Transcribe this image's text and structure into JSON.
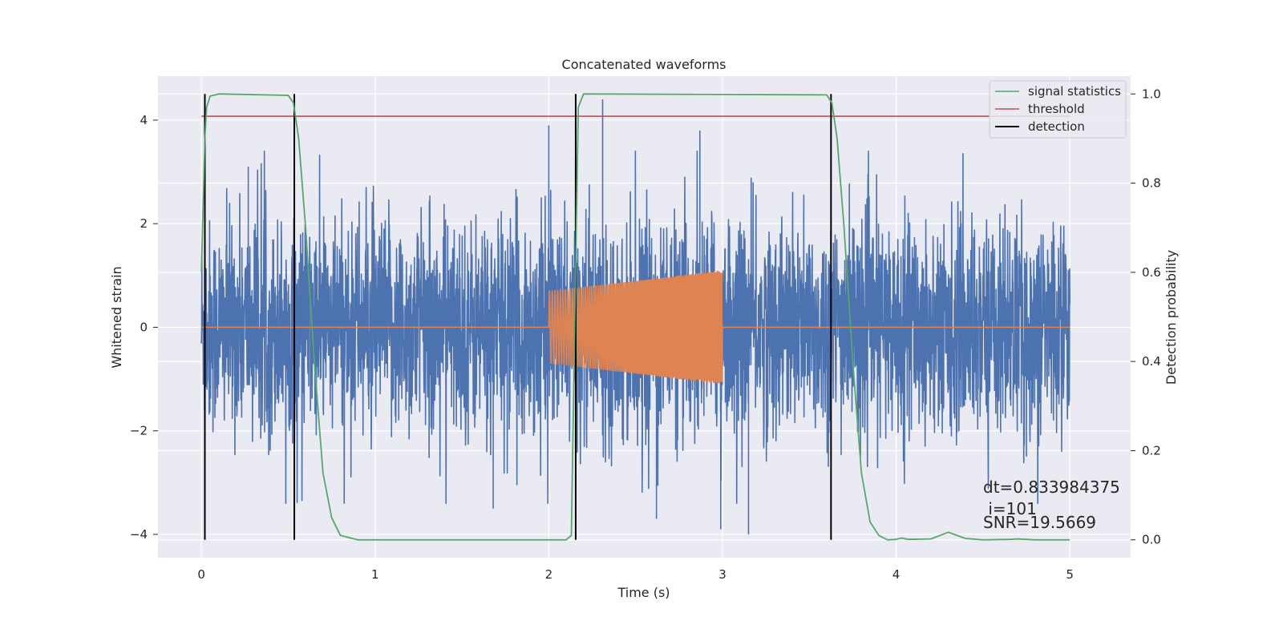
{
  "chart_data": {
    "type": "line",
    "title": "Concatenated waveforms",
    "xlabel": "Time (s)",
    "ylabel": "Whitened strain",
    "y2label": "Detection probability",
    "xlim": [
      -0.25,
      5.35
    ],
    "ylim": [
      -4.45,
      4.85
    ],
    "y2lim": [
      -0.04,
      1.04
    ],
    "xticks": [
      0,
      1,
      2,
      3,
      4,
      5
    ],
    "yticks": [
      -4,
      -2,
      0,
      2,
      4
    ],
    "y2ticks": [
      0.0,
      0.2,
      0.4,
      0.6,
      0.8,
      1.0
    ],
    "xtick_labels": [
      "0",
      "1",
      "2",
      "3",
      "4",
      "5"
    ],
    "ytick_labels": [
      "−4",
      "−2",
      "0",
      "2",
      "4"
    ],
    "y2tick_labels": [
      "0.0",
      "0.2",
      "0.4",
      "0.6",
      "0.8",
      "1.0"
    ],
    "grid": true,
    "legend_position": "top-right",
    "series": [
      {
        "role": "strain-noise",
        "axis": "left",
        "color": "#4c72b0",
        "x_range": [
          0,
          5
        ],
        "typical_amplitude": 1.3,
        "peak_values": [
          {
            "x": 0.27,
            "y": 3.1
          },
          {
            "x": 2.0,
            "y": 3.9
          },
          {
            "x": 2.31,
            "y": 4.4
          },
          {
            "x": 2.87,
            "y": 3.8
          },
          {
            "x": 1.68,
            "y": -3.5
          },
          {
            "x": 2.62,
            "y": -3.7
          },
          {
            "x": 2.99,
            "y": -3.9
          },
          {
            "x": 3.15,
            "y": -4.0
          }
        ]
      },
      {
        "role": "injected-chirp",
        "axis": "left",
        "color": "#dd8452",
        "x_range": [
          0,
          5
        ],
        "chirp_start": 2.0,
        "chirp_end": 3.0,
        "amplitude_start": 0.7,
        "amplitude_end": 1.1
      },
      {
        "name": "signal statistics",
        "axis": "right",
        "color": "#55a868",
        "points": [
          [
            0.0,
            0.6
          ],
          [
            0.01,
            0.75
          ],
          [
            0.02,
            0.9
          ],
          [
            0.03,
            0.97
          ],
          [
            0.05,
            0.995
          ],
          [
            0.1,
            1.0
          ],
          [
            0.5,
            0.997
          ],
          [
            0.53,
            0.98
          ],
          [
            0.56,
            0.9
          ],
          [
            0.6,
            0.7
          ],
          [
            0.65,
            0.4
          ],
          [
            0.7,
            0.15
          ],
          [
            0.75,
            0.05
          ],
          [
            0.8,
            0.01
          ],
          [
            0.9,
            0.0
          ],
          [
            2.1,
            0.0
          ],
          [
            2.13,
            0.01
          ],
          [
            2.15,
            0.5
          ],
          [
            2.17,
            0.97
          ],
          [
            2.2,
            1.0
          ],
          [
            3.6,
            0.998
          ],
          [
            3.63,
            0.98
          ],
          [
            3.66,
            0.9
          ],
          [
            3.7,
            0.7
          ],
          [
            3.75,
            0.4
          ],
          [
            3.8,
            0.15
          ],
          [
            3.85,
            0.04
          ],
          [
            3.9,
            0.01
          ],
          [
            3.95,
            0.0
          ],
          [
            4.0,
            0.001
          ],
          [
            4.03,
            0.004
          ],
          [
            4.07,
            0.001
          ],
          [
            4.2,
            0.002
          ],
          [
            4.3,
            0.017
          ],
          [
            4.4,
            0.003
          ],
          [
            4.5,
            0.0
          ],
          [
            4.65,
            0.001
          ],
          [
            4.7,
            0.002
          ],
          [
            4.8,
            0.0
          ],
          [
            5.0,
            0.0
          ]
        ]
      },
      {
        "name": "threshold",
        "axis": "right",
        "color": "#c44e52",
        "value": 0.95,
        "x_range": [
          0,
          5
        ]
      },
      {
        "name": "detection",
        "axis": "right",
        "color": "#000000",
        "x_values": [
          0.02,
          0.535,
          2.155,
          3.625
        ],
        "y_range": [
          0.0,
          1.0
        ]
      }
    ],
    "annotations": [
      {
        "text": "dt=0.833984375",
        "x": 4.5,
        "y": 0.1
      },
      {
        "text": " i=101",
        "x": 4.5,
        "y": 0.06
      },
      {
        "text": "SNR=19.5669",
        "x": 4.5,
        "y": 0.03
      }
    ]
  }
}
